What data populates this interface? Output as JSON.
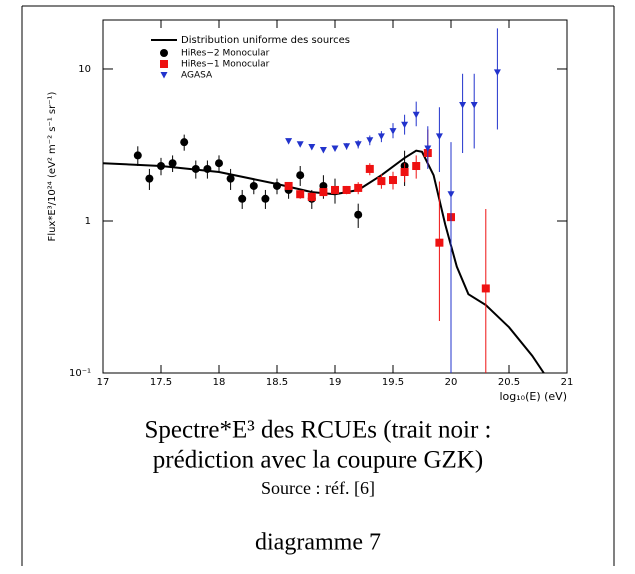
{
  "chart_data": {
    "type": "scatter",
    "xlabel": "log₁₀(E) (eV)",
    "ylabel": "Flux*E³/10²⁴ (eV² m⁻² s⁻¹ sr⁻¹)",
    "xlim": [
      17,
      21
    ],
    "ylim": [
      0.1,
      21
    ],
    "ylog": true,
    "xticks": [
      17,
      17.5,
      18,
      18.5,
      19,
      19.5,
      20,
      20.5,
      21
    ],
    "yticks": [
      {
        "value": 0.1,
        "label": "10⁻¹"
      },
      1,
      10
    ],
    "legend": "upper left",
    "series": [
      {
        "name": "Distribution uniforme des sources",
        "color": "#000000",
        "mode": "line",
        "x": [
          17,
          17.5,
          18,
          18.5,
          18.8,
          19.0,
          19.2,
          19.4,
          19.6,
          19.7,
          19.75,
          19.85,
          19.95,
          20.05,
          20.15,
          20.3,
          20.5,
          20.7,
          20.8
        ],
        "values": [
          2.4,
          2.3,
          2.1,
          1.75,
          1.55,
          1.5,
          1.6,
          2.0,
          2.6,
          2.9,
          2.85,
          2.0,
          0.95,
          0.5,
          0.33,
          0.28,
          0.2,
          0.13,
          0.1
        ]
      },
      {
        "name": "HiRes−2 Monocular",
        "color": "#000000",
        "marker": "circle",
        "x": [
          17.3,
          17.4,
          17.5,
          17.6,
          17.7,
          17.8,
          17.9,
          18.0,
          18.1,
          18.2,
          18.3,
          18.4,
          18.5,
          18.6,
          18.7,
          18.8,
          18.9,
          19.0,
          19.2,
          19.6
        ],
        "values": [
          2.7,
          1.9,
          2.3,
          2.4,
          3.3,
          2.2,
          2.2,
          2.4,
          1.9,
          1.4,
          1.7,
          1.4,
          1.7,
          1.6,
          2.0,
          1.4,
          1.7,
          1.6,
          1.1,
          2.3
        ],
        "err_minus": [
          0.4,
          0.3,
          0.3,
          0.3,
          0.4,
          0.3,
          0.3,
          0.3,
          0.3,
          0.2,
          0.2,
          0.2,
          0.2,
          0.2,
          0.3,
          0.2,
          0.3,
          0.3,
          0.2,
          0.6
        ],
        "err_plus": [
          0.4,
          0.3,
          0.3,
          0.3,
          0.4,
          0.3,
          0.3,
          0.3,
          0.3,
          0.2,
          0.2,
          0.2,
          0.2,
          0.2,
          0.3,
          0.2,
          0.3,
          0.3,
          0.2,
          0.6
        ]
      },
      {
        "name": "HiRes−1 Monocular",
        "color": "#ee1111",
        "marker": "square",
        "x": [
          18.6,
          18.7,
          18.8,
          18.9,
          19.0,
          19.1,
          19.2,
          19.3,
          19.4,
          19.5,
          19.6,
          19.7,
          19.8,
          19.9,
          20.0,
          20.3
        ],
        "values": [
          1.7,
          1.5,
          1.44,
          1.55,
          1.6,
          1.6,
          1.65,
          2.2,
          1.83,
          1.86,
          2.1,
          2.3,
          2.8,
          0.72,
          1.06,
          0.36
        ],
        "err_minus": [
          0.1,
          0.1,
          0.1,
          0.1,
          0.1,
          0.1,
          0.15,
          0.2,
          0.2,
          0.25,
          0.3,
          0.4,
          0.5,
          0.5,
          0.96,
          0.26
        ],
        "err_plus": [
          0.1,
          0.1,
          0.1,
          0.1,
          0.1,
          0.1,
          0.15,
          0.2,
          0.2,
          0.25,
          0.3,
          0.4,
          1.2,
          1.1,
          1.4,
          0.84
        ]
      },
      {
        "name": "AGASA",
        "color": "#2233cc",
        "marker": "triangle",
        "x": [
          18.6,
          18.7,
          18.8,
          18.9,
          19.0,
          19.1,
          19.2,
          19.3,
          19.4,
          19.5,
          19.6,
          19.7,
          19.8,
          19.9,
          20.0,
          20.1,
          20.2,
          20.4
        ],
        "values": [
          3.35,
          3.2,
          3.07,
          2.93,
          3.0,
          3.1,
          3.2,
          3.4,
          3.6,
          3.9,
          4.3,
          5.0,
          3.0,
          3.6,
          1.5,
          5.8,
          5.8,
          9.5
        ],
        "err_minus": [
          0.1,
          0.1,
          0.1,
          0.1,
          0.1,
          0.15,
          0.2,
          0.25,
          0.3,
          0.4,
          0.6,
          0.8,
          0.8,
          1.5,
          1.4,
          3.0,
          2.8,
          5.5
        ],
        "err_plus": [
          0.1,
          0.1,
          0.1,
          0.1,
          0.1,
          0.15,
          0.2,
          0.25,
          0.3,
          0.5,
          0.7,
          1.1,
          1.2,
          2.0,
          1.8,
          3.5,
          3.5,
          9.0
        ]
      }
    ]
  },
  "caption": {
    "line1": "Spectre*E³ des RCUEs (trait noir :",
    "line2": "prédiction avec la coupure GZK)",
    "source": "Source : réf. [6]",
    "label": "diagramme 7"
  }
}
